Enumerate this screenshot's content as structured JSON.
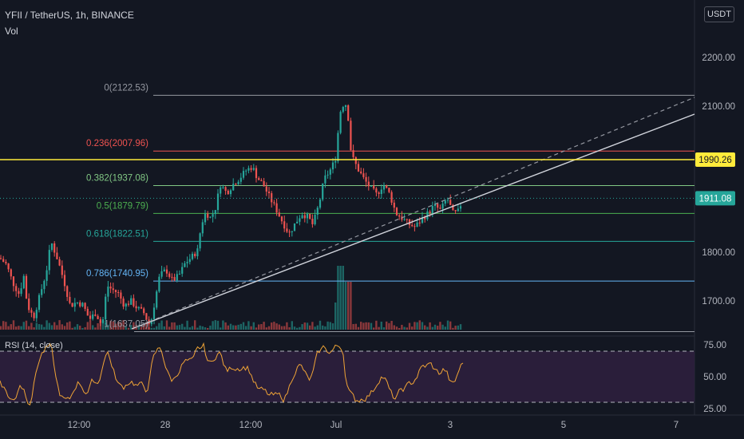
{
  "header": {
    "title": "YFII / TetherUS, 1h, BINANCE",
    "volume_label": "Vol",
    "unit": "USDT"
  },
  "colors": {
    "up": "#26a69a",
    "down": "#ef5350",
    "background": "#131722",
    "rsi": "#f0a436",
    "rsi_band": "#2a1e3a",
    "highlight": "#ffeb3b"
  },
  "chart_data": {
    "type": "candlestick",
    "symbol": "YFII / TetherUS",
    "interval": "1h",
    "exchange": "BINANCE",
    "ylim": [
      1636,
      2210
    ],
    "x_ticks": [
      "12:00",
      "28",
      "12:00",
      "Jul",
      "3",
      "5",
      "7"
    ],
    "y_ticks": [
      "2200.00",
      "2100.00",
      "1800.00",
      "1700.00"
    ],
    "fib_levels": [
      {
        "label": "0(2122.53)",
        "ratio": 0,
        "value": 2122.53,
        "color": "#9598a1"
      },
      {
        "label": "0.236(2007.96)",
        "ratio": 0.236,
        "value": 2007.96,
        "color": "#ef5350"
      },
      {
        "label": "0.382(1937.08)",
        "ratio": 0.382,
        "value": 1937.08,
        "color": "#81c784"
      },
      {
        "label": "0.5(1879.79)",
        "ratio": 0.5,
        "value": 1879.79,
        "color": "#4caf50"
      },
      {
        "label": "0.618(1822.51)",
        "ratio": 0.618,
        "value": 1822.51,
        "color": "#26a69a"
      },
      {
        "label": "0.786(1740.95)",
        "ratio": 0.786,
        "value": 1740.95,
        "color": "#64b5f6"
      },
      {
        "label": "1(1637.05)",
        "ratio": 1,
        "value": 1637.05,
        "color": "#9598a1"
      }
    ],
    "horizontal_line": {
      "value": 1990.26,
      "label": "1990.26"
    },
    "last_price": {
      "value": 1911.08,
      "label": "1911.08"
    },
    "rsi": {
      "label": "RSI (14, close)",
      "ylim": [
        20,
        80
      ],
      "upper": 70,
      "lower": 30,
      "ticks": [
        "75.00",
        "50.00",
        "25.00"
      ]
    },
    "close_path": [
      [
        0,
        1788
      ],
      [
        8,
        1775
      ],
      [
        16,
        1738
      ],
      [
        24,
        1714
      ],
      [
        30,
        1752
      ],
      [
        34,
        1692
      ],
      [
        42,
        1666
      ],
      [
        50,
        1712
      ],
      [
        58,
        1760
      ],
      [
        64,
        1822
      ],
      [
        72,
        1786
      ],
      [
        80,
        1742
      ],
      [
        88,
        1690
      ],
      [
        96,
        1698
      ],
      [
        104,
        1692
      ],
      [
        112,
        1662
      ],
      [
        120,
        1676
      ],
      [
        128,
        1648
      ],
      [
        134,
        1732
      ],
      [
        140,
        1724
      ],
      [
        148,
        1716
      ],
      [
        156,
        1690
      ],
      [
        164,
        1700
      ],
      [
        172,
        1685
      ],
      [
        180,
        1676
      ],
      [
        188,
        1648
      ],
      [
        194,
        1700
      ],
      [
        200,
        1752
      ],
      [
        208,
        1764
      ],
      [
        216,
        1742
      ],
      [
        224,
        1752
      ],
      [
        232,
        1778
      ],
      [
        240,
        1790
      ],
      [
        248,
        1805
      ],
      [
        252,
        1858
      ],
      [
        258,
        1882
      ],
      [
        264,
        1870
      ],
      [
        270,
        1892
      ],
      [
        276,
        1940
      ],
      [
        284,
        1922
      ],
      [
        292,
        1940
      ],
      [
        300,
        1952
      ],
      [
        308,
        1968
      ],
      [
        316,
        1976
      ],
      [
        322,
        1954
      ],
      [
        330,
        1938
      ],
      [
        338,
        1912
      ],
      [
        346,
        1888
      ],
      [
        354,
        1862
      ],
      [
        362,
        1838
      ],
      [
        370,
        1860
      ],
      [
        378,
        1880
      ],
      [
        386,
        1872
      ],
      [
        392,
        1856
      ],
      [
        400,
        1902
      ],
      [
        406,
        1950
      ],
      [
        414,
        1970
      ],
      [
        420,
        1990
      ],
      [
        426,
        2088
      ],
      [
        432,
        2112
      ],
      [
        436,
        2080
      ],
      [
        440,
        2000
      ],
      [
        448,
        1972
      ],
      [
        456,
        1950
      ],
      [
        464,
        1932
      ],
      [
        472,
        1918
      ],
      [
        480,
        1940
      ],
      [
        488,
        1920
      ],
      [
        496,
        1880
      ],
      [
        504,
        1870
      ],
      [
        512,
        1858
      ],
      [
        520,
        1852
      ],
      [
        528,
        1868
      ],
      [
        536,
        1880
      ],
      [
        544,
        1896
      ],
      [
        552,
        1886
      ],
      [
        560,
        1912
      ],
      [
        568,
        1878
      ],
      [
        574,
        1884
      ],
      [
        580,
        1911
      ]
    ]
  }
}
